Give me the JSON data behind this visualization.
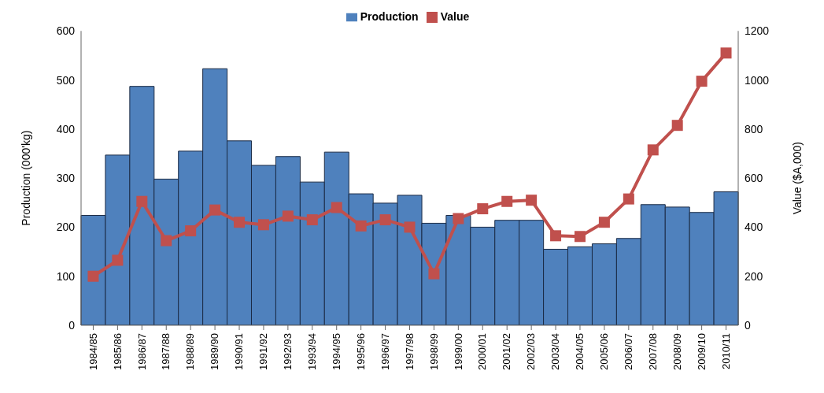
{
  "chart_data": {
    "type": "bar",
    "categories": [
      "1984/85",
      "1985/86",
      "1986/87",
      "1987/88",
      "1988/89",
      "1989/90",
      "1990/91",
      "1991/92",
      "1992/93",
      "1993/94",
      "1994/95",
      "1995/96",
      "1996/97",
      "1997/98",
      "1998/99",
      "1999/00",
      "2000/01",
      "2001/02",
      "2002/03",
      "2003/04",
      "2004/05",
      "2005/06",
      "2006/07",
      "2007/08",
      "2008/09",
      "2009/10",
      "2010/11"
    ],
    "series": [
      {
        "name": "Production",
        "color": "#4f81bd",
        "values": [
          224,
          347,
          487,
          298,
          355,
          523,
          376,
          326,
          344,
          292,
          353,
          268,
          249,
          265,
          208,
          224,
          200,
          214,
          214,
          155,
          160,
          166,
          177,
          246,
          241,
          230,
          272
        ]
      },
      {
        "name": "Value",
        "type": "line",
        "axis": "y2",
        "color": "#c0504d",
        "marker": "square",
        "values": [
          200,
          265,
          505,
          345,
          385,
          470,
          420,
          410,
          445,
          430,
          480,
          405,
          430,
          400,
          210,
          435,
          475,
          505,
          510,
          365,
          362,
          420,
          515,
          715,
          815,
          995,
          1110
        ]
      }
    ],
    "ylabel": "Production (000'kg)",
    "y2label": "Value ($A,000)",
    "ylim": [
      0,
      600
    ],
    "yticks": [
      0,
      100,
      200,
      300,
      400,
      500,
      600
    ],
    "y2lim": [
      0,
      1200
    ],
    "y2ticks": [
      0,
      200,
      400,
      600,
      800,
      1000,
      1200
    ],
    "grid": false,
    "legend": "top"
  }
}
